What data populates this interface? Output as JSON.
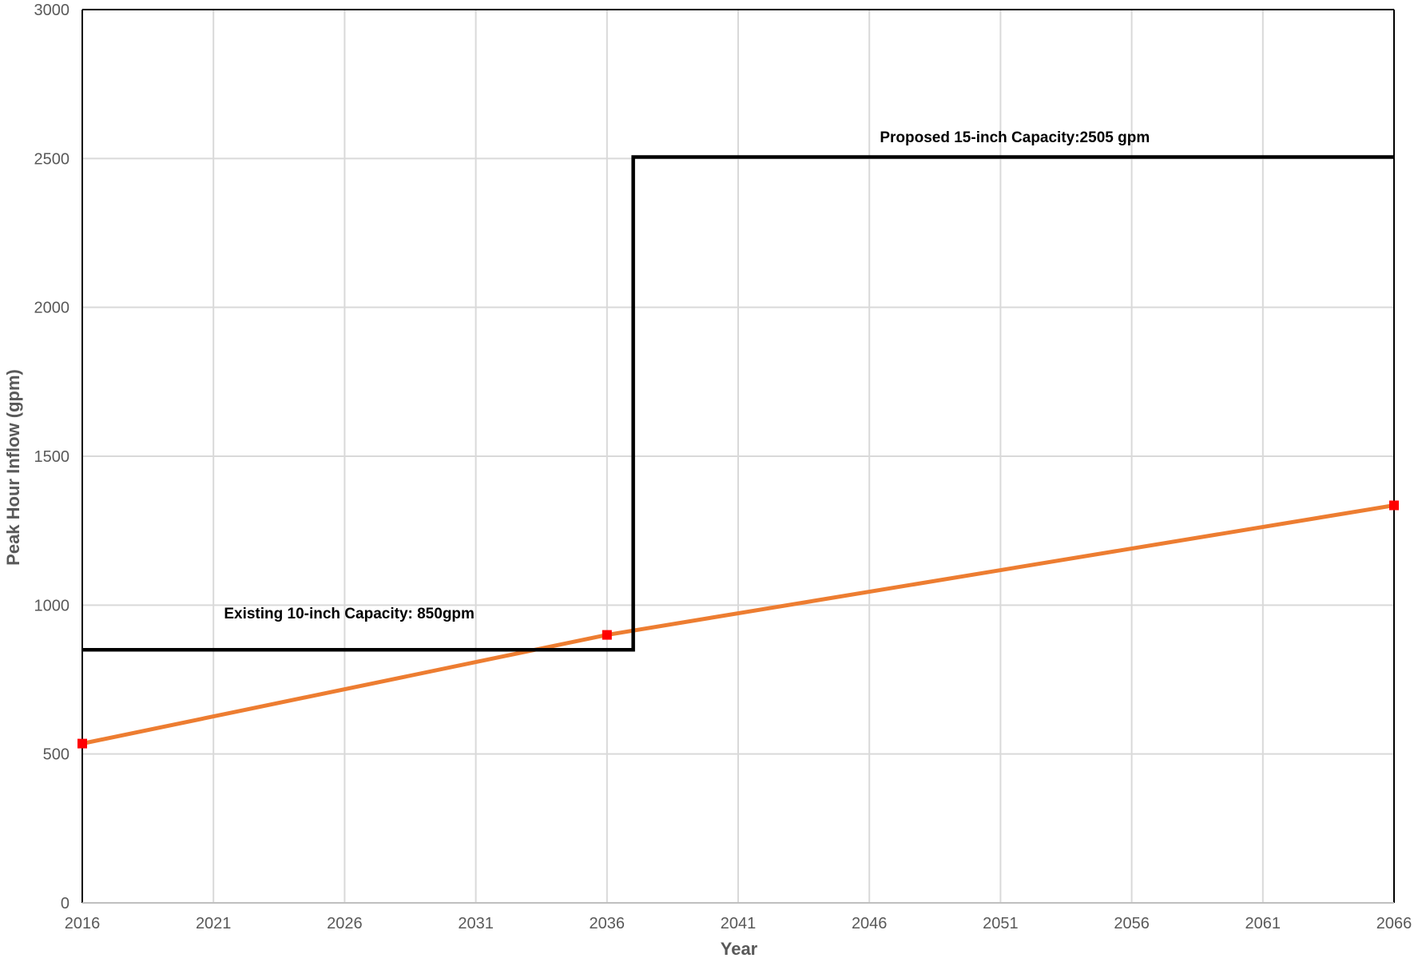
{
  "chart_data": {
    "type": "line",
    "title": "",
    "xlabel": "Year",
    "ylabel": "Peak Hour Inflow (gpm)",
    "xlim": [
      2016,
      2066
    ],
    "ylim": [
      0,
      3000
    ],
    "x_ticks": [
      "2016",
      "2021",
      "2026",
      "2031",
      "2036",
      "2041",
      "2046",
      "2051",
      "2056",
      "2061",
      "2066"
    ],
    "y_ticks": [
      "0",
      "500",
      "1000",
      "1500",
      "2000",
      "2500",
      "3000"
    ],
    "grid": true,
    "series": [
      {
        "role": "capacity",
        "color": "#000000",
        "x": [
          2016,
          2037,
          2037,
          2066
        ],
        "y": [
          850,
          850,
          2505,
          2505
        ]
      },
      {
        "role": "projected-inflow",
        "color": "#ed7d31",
        "marker_color": "#ff0000",
        "x": [
          2016,
          2036,
          2066
        ],
        "y": [
          535,
          900,
          1335
        ]
      }
    ],
    "annotations": [
      {
        "text": "Existing 10-inch Capacity: 850gpm",
        "x": 2021.4,
        "y": 955
      },
      {
        "text": "Proposed 15-inch  Capacity:2505 gpm",
        "x": 2046.4,
        "y": 2555
      }
    ]
  }
}
